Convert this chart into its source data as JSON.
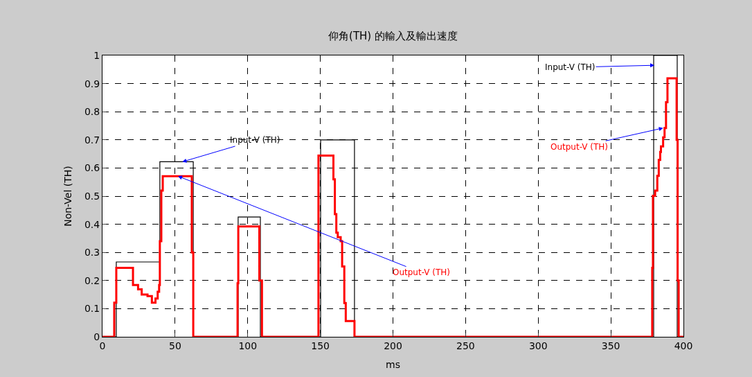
{
  "chart_data": {
    "type": "step",
    "title": "仰角(TH) 的輸入及輸出速度",
    "xlabel": "ms",
    "ylabel": "Non-Vel (TH)",
    "xlim": [
      0,
      400
    ],
    "xticks": [
      0,
      50,
      100,
      150,
      200,
      250,
      300,
      350,
      400
    ],
    "ylim": [
      0,
      1
    ],
    "yticks": [
      0,
      0.1,
      0.2,
      0.3,
      0.4,
      0.5,
      0.6,
      0.7,
      0.8,
      0.9,
      1
    ],
    "grid": true,
    "marker": "none",
    "series": [
      {
        "color": "#000000",
        "x": [
          0,
          9.5,
          39.5,
          62.5,
          93.4,
          108.7,
          150.2,
          173.5,
          379.5,
          395.7,
          400
        ],
        "values": [
          0,
          0.266,
          0.622,
          0,
          0.426,
          0,
          0.7,
          0,
          1.0,
          0,
          0
        ]
      },
      {
        "color": "#ff0000",
        "x": [
          0,
          8.1,
          9.5,
          21,
          24.5,
          27,
          31,
          34,
          36.5,
          38,
          39,
          39.5,
          40.5,
          41.5,
          61.5,
          62.5,
          93,
          93.5,
          108,
          109.8,
          148.7,
          159,
          160,
          161,
          162,
          164,
          165,
          166.5,
          167.5,
          173.5,
          378.5,
          379,
          380.5,
          382,
          383,
          384,
          384.5,
          386,
          387,
          388,
          389,
          395.3,
          396,
          396.7,
          400
        ],
        "values": [
          0,
          0.121,
          0.245,
          0.184,
          0.169,
          0.15,
          0.145,
          0.121,
          0.136,
          0.16,
          0.184,
          0.34,
          0.52,
          0.571,
          0.3,
          0,
          0.19,
          0.392,
          0.2,
          0,
          0.644,
          0.56,
          0.436,
          0.37,
          0.354,
          0.34,
          0.25,
          0.12,
          0.056,
          0,
          0.245,
          0.501,
          0.52,
          0.572,
          0.629,
          0.657,
          0.677,
          0.709,
          0.742,
          0.834,
          0.919,
          0.7,
          0.2,
          0,
          0
        ]
      }
    ],
    "annotations": [
      {
        "text": "Input-V (TH)",
        "x": 55,
        "y": 0.622
      },
      {
        "text": "Output-V (TH)",
        "x": 52,
        "y": 0.571
      },
      {
        "text": "Input-V (TH)",
        "x": 380,
        "y": 0.965
      },
      {
        "text": "Output-V (TH)",
        "x": 386,
        "y": 0.742
      }
    ]
  }
}
